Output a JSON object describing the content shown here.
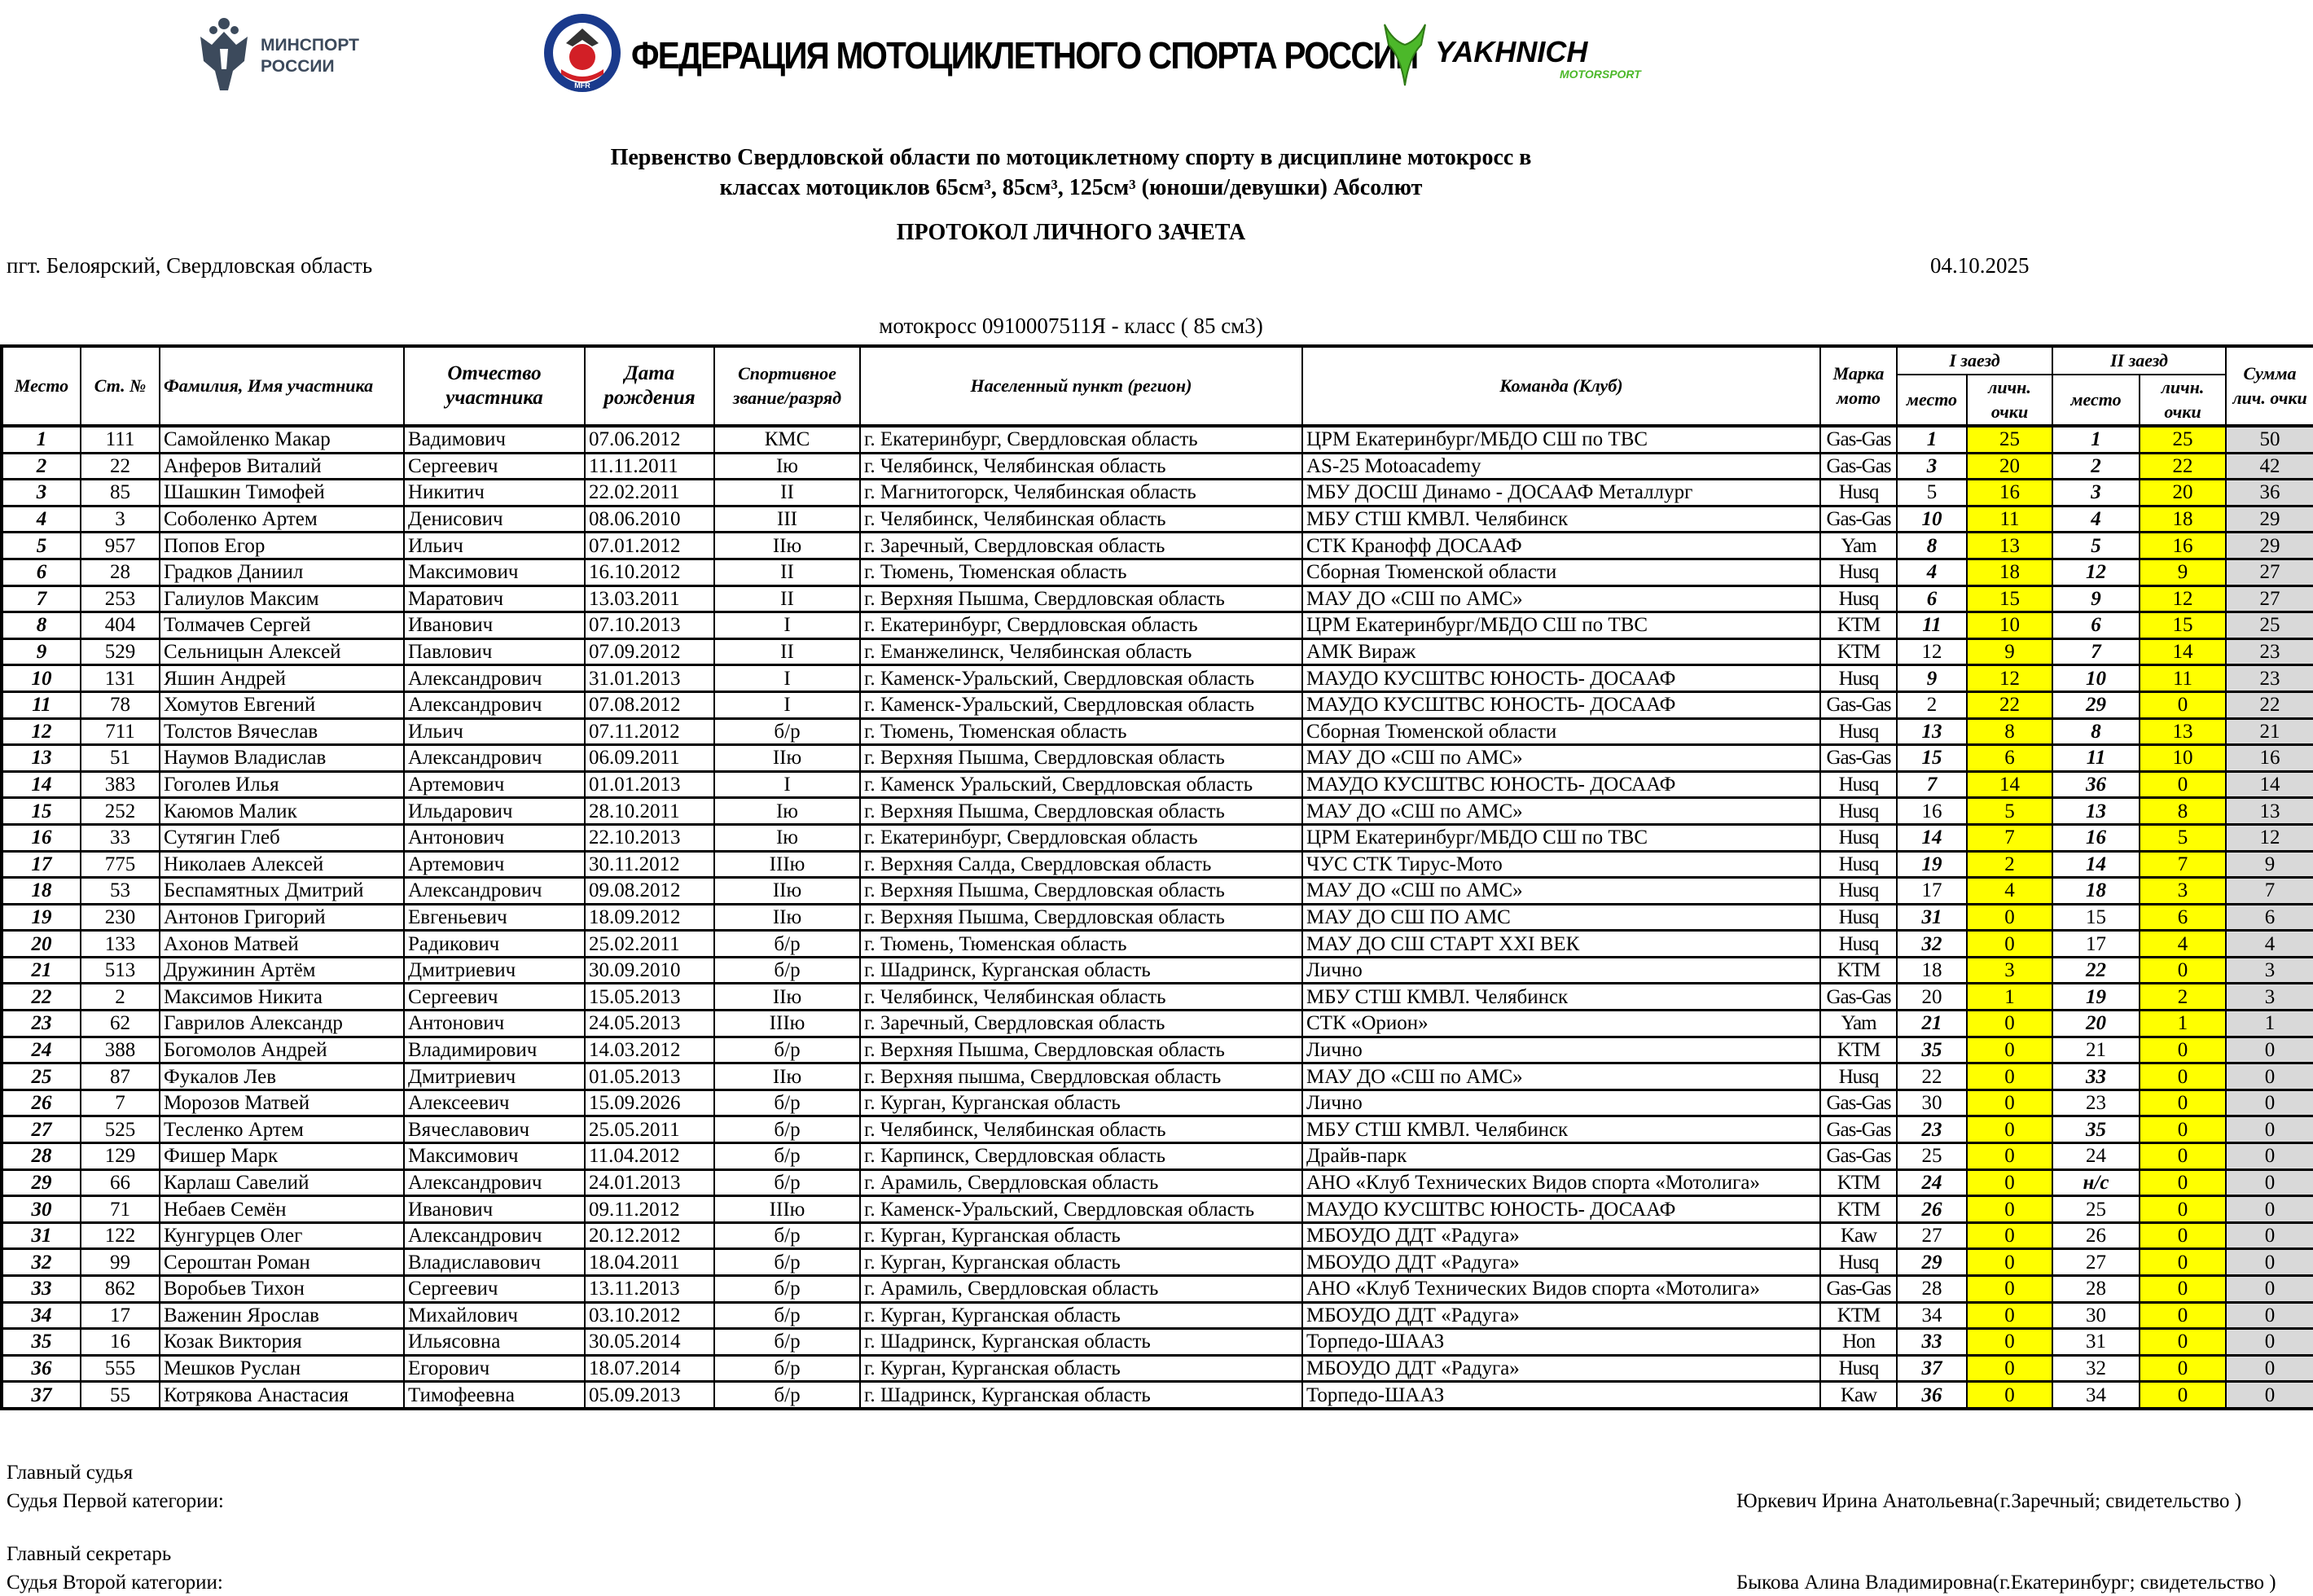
{
  "logos": {
    "minsport": "МИНСПОРТ РОССИИ",
    "fmr": "ФЕДЕРАЦИЯ МОТОЦИКЛЕТНОГО СПОРТА РОССИИ",
    "fmr_badge": "MFR",
    "yakhnich": "YAKHNICH",
    "yakhnich_sub": "MOTORSPORT"
  },
  "header": {
    "title_line1": "Первенство Свердловской области по мотоциклетному спорту в дисциплине мотокросс в",
    "title_line2": "классах мотоциклов  65см³, 85см³, 125см³ (юноши/девушки) Абсолют",
    "protocol": "ПРОТОКОЛ ЛИЧНОГО ЗАЧЕТА",
    "location": "пгт. Белоярский, Свердловская область",
    "date": "04.10.2025",
    "class_line": "мотокросс 0910007511Я - класс ( 85 см3)"
  },
  "table": {
    "columns": {
      "place": "Место",
      "number": "Ст. №",
      "name": "Фамилия, Имя участника",
      "patronymic": "Отчество участника",
      "dob": "Дата рождения",
      "rank": "Спортивное звание/разряд",
      "city": "Населенный пункт (регион)",
      "team": "Команда (Клуб)",
      "moto": "Марка мото",
      "race1": "I заезд",
      "race2": "II заезд",
      "sub_place": "место",
      "sub_points": "личн. очки",
      "total": "Сумма лич. очки"
    },
    "rows": [
      [
        "1",
        "111",
        "Самойленко Макар",
        "Вадимович",
        "07.06.2012",
        "КМС",
        "г. Екатеринбург, Свердловская область",
        "ЦРМ Екатеринбург/МБДО СШ по ТВС",
        "Gas-Gas",
        "1",
        "25",
        "1",
        "25",
        "50"
      ],
      [
        "2",
        "22",
        "Анферов Виталий",
        "Сергеевич",
        "11.11.2011",
        "Iю",
        "г. Челябинск, Челябинская область",
        "AS-25 Motoacademy",
        "Gas-Gas",
        "3",
        "20",
        "2",
        "22",
        "42"
      ],
      [
        "3",
        "85",
        "Шашкин Тимофей",
        "Никитич",
        "22.02.2011",
        "II",
        "г. Магнитогорск, Челябинская область",
        "МБУ ДОСШ Динамо - ДОСААФ Металлург",
        "Husq",
        "5",
        "16",
        "3",
        "20",
        "36"
      ],
      [
        "4",
        "3",
        "Соболенко Артем",
        "Денисович",
        "08.06.2010",
        "III",
        "г. Челябинск, Челябинская область",
        "МБУ СТШ КМВЛ. Челябинск",
        "Gas-Gas",
        "10",
        "11",
        "4",
        "18",
        "29"
      ],
      [
        "5",
        "957",
        "Попов Егор",
        "Ильич",
        "07.01.2012",
        "IIю",
        "г. Заречный, Свердловская область",
        "СТК Кранофф ДОСААФ",
        "Yam",
        "8",
        "13",
        "5",
        "16",
        "29"
      ],
      [
        "6",
        "28",
        "Градков Даниил",
        "Максимович",
        "16.10.2012",
        "II",
        "г. Тюмень, Тюменская область",
        "Сборная Тюменской области",
        "Husq",
        "4",
        "18",
        "12",
        "9",
        "27"
      ],
      [
        "7",
        "253",
        "Галиулов Максим",
        "Маратович",
        "13.03.2011",
        "II",
        "г. Верхняя Пышма, Свердловская область",
        "МАУ ДО «СШ по АМС»",
        "Husq",
        "6",
        "15",
        "9",
        "12",
        "27"
      ],
      [
        "8",
        "404",
        "Толмачев Сергей",
        "Иванович",
        "07.10.2013",
        "I",
        "г. Екатеринбург, Свердловская область",
        "ЦРМ Екатеринбург/МБДО СШ по ТВС",
        "KTM",
        "11",
        "10",
        "6",
        "15",
        "25"
      ],
      [
        "9",
        "529",
        "Сельницын Алексей",
        "Павлович",
        "07.09.2012",
        "II",
        "г. Еманжелинск, Челябинская область",
        "АМК Вираж",
        "KTM",
        "12",
        "9",
        "7",
        "14",
        "23"
      ],
      [
        "10",
        "131",
        "Яшин Андрей",
        "Александрович",
        "31.01.2013",
        "I",
        "г. Каменск-Уральский, Свердловская область",
        "МАУДО КУСШТВС ЮНОСТЬ- ДОСААФ",
        "Husq",
        "9",
        "12",
        "10",
        "11",
        "23"
      ],
      [
        "11",
        "78",
        "Хомутов Евгений",
        "Александрович",
        "07.08.2012",
        "I",
        "г. Каменск-Уральский, Свердловская область",
        "МАУДО КУСШТВС ЮНОСТЬ- ДОСААФ",
        "Gas-Gas",
        "2",
        "22",
        "29",
        "0",
        "22"
      ],
      [
        "12",
        "711",
        "Толстов Вячеслав",
        "Ильич",
        "07.11.2012",
        "б/р",
        "г. Тюмень, Тюменская область",
        "Сборная Тюменской области",
        "Husq",
        "13",
        "8",
        "8",
        "13",
        "21"
      ],
      [
        "13",
        "51",
        "Наумов Владислав",
        "Александрович",
        "06.09.2011",
        "IIю",
        "г. Верхняя Пышма, Свердловская область",
        "МАУ ДО «СШ по АМС»",
        "Gas-Gas",
        "15",
        "6",
        "11",
        "10",
        "16"
      ],
      [
        "14",
        "383",
        "Гоголев Илья",
        "Артемович",
        "01.01.2013",
        "I",
        "г. Каменск Уральский, Свердловская область",
        "МАУДО КУСШТВС ЮНОСТЬ- ДОСААФ",
        "Husq",
        "7",
        "14",
        "36",
        "0",
        "14"
      ],
      [
        "15",
        "252",
        "Каюмов Малик",
        "Ильдарович",
        "28.10.2011",
        "Iю",
        "г. Верхняя Пышма, Свердловская область",
        "МАУ ДО «СШ по АМС»",
        "Husq",
        "16",
        "5",
        "13",
        "8",
        "13"
      ],
      [
        "16",
        "33",
        "Сутягин Глеб",
        "Антонович",
        "22.10.2013",
        "Iю",
        "г. Екатеринбург, Свердловская область",
        "ЦРМ Екатеринбург/МБДО СШ по ТВС",
        "Husq",
        "14",
        "7",
        "16",
        "5",
        "12"
      ],
      [
        "17",
        "775",
        "Николаев Алексей",
        "Артемович",
        "30.11.2012",
        "IIIю",
        "г. Верхняя Салда, Свердловская область",
        "ЧУС СТК Тирус-Мото",
        "Husq",
        "19",
        "2",
        "14",
        "7",
        "9"
      ],
      [
        "18",
        "53",
        "Беспамятных Дмитрий",
        "Александрович",
        "09.08.2012",
        "IIю",
        "г. Верхняя Пышма, Свердловская область",
        "МАУ ДО «СШ по АМС»",
        "Husq",
        "17",
        "4",
        "18",
        "3",
        "7"
      ],
      [
        "19",
        "230",
        "Антонов Григорий",
        "Евгеньевич",
        "18.09.2012",
        "IIю",
        "г. Верхняя Пышма, Свердловская область",
        "МАУ ДО СШ ПО АМС",
        "Husq",
        "31",
        "0",
        "15",
        "6",
        "6"
      ],
      [
        "20",
        "133",
        "Ахонов Матвей",
        "Радикович",
        "25.02.2011",
        "б/р",
        "г. Тюмень, Тюменская область",
        "МАУ ДО СШ СТАРТ XXI ВЕК",
        "Husq",
        "32",
        "0",
        "17",
        "4",
        "4"
      ],
      [
        "21",
        "513",
        "Дружинин Артём",
        "Дмитриевич",
        "30.09.2010",
        "б/р",
        "г. Шадринск, Курганская область",
        "Лично",
        "KTM",
        "18",
        "3",
        "22",
        "0",
        "3"
      ],
      [
        "22",
        "2",
        "Максимов Никита",
        "Сергеевич",
        "15.05.2013",
        "IIю",
        "г. Челябинск, Челябинская область",
        "МБУ СТШ КМВЛ. Челябинск",
        "Gas-Gas",
        "20",
        "1",
        "19",
        "2",
        "3"
      ],
      [
        "23",
        "62",
        "Гаврилов Александр",
        "Антонович",
        "24.05.2013",
        "IIIю",
        "г. Заречный, Свердловская область",
        "СТК «Орион»",
        "Yam",
        "21",
        "0",
        "20",
        "1",
        "1"
      ],
      [
        "24",
        "388",
        "Богомолов Андрей",
        "Владимирович",
        "14.03.2012",
        "б/р",
        "г. Верхняя Пышма, Свердловская область",
        "Лично",
        "KTM",
        "35",
        "0",
        "21",
        "0",
        "0"
      ],
      [
        "25",
        "87",
        "Фукалов Лев",
        "Дмитриевич",
        "01.05.2013",
        "IIю",
        "г. Верхняя пышма, Свердловская область",
        "МАУ ДО «СШ по АМС»",
        "Husq",
        "22",
        "0",
        "33",
        "0",
        "0"
      ],
      [
        "26",
        "7",
        "Морозов Матвей",
        "Алексеевич",
        "15.09.2026",
        "б/р",
        "г. Курган, Курганская область",
        "Лично",
        "Gas-Gas",
        "30",
        "0",
        "23",
        "0",
        "0"
      ],
      [
        "27",
        "525",
        "Тесленко Артем",
        "Вячеславович",
        "25.05.2011",
        "б/р",
        "г. Челябинск, Челябинская область",
        "МБУ СТШ КМВЛ. Челябинск",
        "Gas-Gas",
        "23",
        "0",
        "35",
        "0",
        "0"
      ],
      [
        "28",
        "129",
        "Фишер Марк",
        "Максимович",
        "11.04.2012",
        "б/р",
        "г. Карпинск, Свердловская область",
        "Драйв-парк",
        "Gas-Gas",
        "25",
        "0",
        "24",
        "0",
        "0"
      ],
      [
        "29",
        "66",
        "Карлаш Савелий",
        "Александрович",
        "24.01.2013",
        "б/р",
        "г. Арамиль, Свердловская область",
        "АНО «Клуб Технических Видов спорта «Мотолига»",
        "KTM",
        "24",
        "0",
        "н/с",
        "0",
        "0"
      ],
      [
        "30",
        "71",
        "Небаев Семён",
        "Иванович",
        "09.11.2012",
        "IIIю",
        "г. Каменск-Уральский, Свердловская область",
        "МАУДО КУСШТВС ЮНОСТЬ- ДОСААФ",
        "KTM",
        "26",
        "0",
        "25",
        "0",
        "0"
      ],
      [
        "31",
        "122",
        "Кунгурцев Олег",
        "Александрович",
        "20.12.2012",
        "б/р",
        "г. Курган, Курганская область",
        "МБОУДО ДДТ «Радуга»",
        "Kaw",
        "27",
        "0",
        "26",
        "0",
        "0"
      ],
      [
        "32",
        "99",
        "Сероштан Роман",
        "Владиславович",
        "18.04.2011",
        "б/р",
        "г. Курган, Курганская область",
        "МБОУДО ДДТ «Радуга»",
        "Husq",
        "29",
        "0",
        "27",
        "0",
        "0"
      ],
      [
        "33",
        "862",
        "Воробьев Тихон",
        "Сергеевич",
        "13.11.2013",
        "б/р",
        "г. Арамиль, Свердловская область",
        "АНО «Клуб Технических Видов спорта «Мотолига»",
        "Gas-Gas",
        "28",
        "0",
        "28",
        "0",
        "0"
      ],
      [
        "34",
        "17",
        "Важенин Ярослав",
        "Михайлович",
        "03.10.2012",
        "б/р",
        "г. Курган, Курганская область",
        "МБОУДО ДДТ «Радуга»",
        "KTM",
        "34",
        "0",
        "30",
        "0",
        "0"
      ],
      [
        "35",
        "16",
        "Козак Виктория",
        "Ильясовна",
        "30.05.2014",
        "б/р",
        "г. Шадринск, Курганская область",
        "Торпедо-ШААЗ",
        "Hon",
        "33",
        "0",
        "31",
        "0",
        "0"
      ],
      [
        "36",
        "555",
        "Мешков Руслан",
        "Егорович",
        "18.07.2014",
        "б/р",
        "г. Курган, Курганская область",
        "МБОУДО ДДТ «Радуга»",
        "Husq",
        "37",
        "0",
        "32",
        "0",
        "0"
      ],
      [
        "37",
        "55",
        "Котрякова Анастасия",
        "Тимофеевна",
        "05.09.2013",
        "б/р",
        "г. Шадринск, Курганская область",
        "Торпедо-ШААЗ",
        "Kaw",
        "36",
        "0",
        "34",
        "0",
        "0"
      ]
    ],
    "race_place_emphasis": [
      [
        1,
        1
      ],
      [
        1,
        1
      ],
      [
        0,
        1
      ],
      [
        1,
        1
      ],
      [
        1,
        1
      ],
      [
        1,
        1
      ],
      [
        1,
        1
      ],
      [
        1,
        1
      ],
      [
        0,
        1
      ],
      [
        1,
        1
      ],
      [
        0,
        1
      ],
      [
        1,
        1
      ],
      [
        1,
        1
      ],
      [
        1,
        1
      ],
      [
        0,
        1
      ],
      [
        1,
        1
      ],
      [
        1,
        1
      ],
      [
        0,
        1
      ],
      [
        1,
        0
      ],
      [
        1,
        0
      ],
      [
        0,
        1
      ],
      [
        0,
        1
      ],
      [
        1,
        1
      ],
      [
        1,
        0
      ],
      [
        0,
        1
      ],
      [
        0,
        0
      ],
      [
        1,
        1
      ],
      [
        0,
        0
      ],
      [
        1,
        1
      ],
      [
        1,
        0
      ],
      [
        0,
        0
      ],
      [
        1,
        0
      ],
      [
        0,
        0
      ],
      [
        0,
        0
      ],
      [
        1,
        0
      ],
      [
        1,
        0
      ],
      [
        1,
        0
      ]
    ],
    "colors": {
      "points_bg": "#ffff00",
      "total_bg": "#d9d9d9"
    }
  },
  "footer": {
    "chief_judge_label": "Главный судья",
    "chief_judge_category": "Судья Первой категории:",
    "chief_judge_name": "Юркевич Ирина Анатольевна(г.Заречный; свидетельство )",
    "chief_secretary_label": "Главный секретарь",
    "chief_secretary_category": "Судья Второй категории:",
    "chief_secretary_name": "Быкова Алина Владимировна(г.Екатеринбург; свидетельство )"
  }
}
